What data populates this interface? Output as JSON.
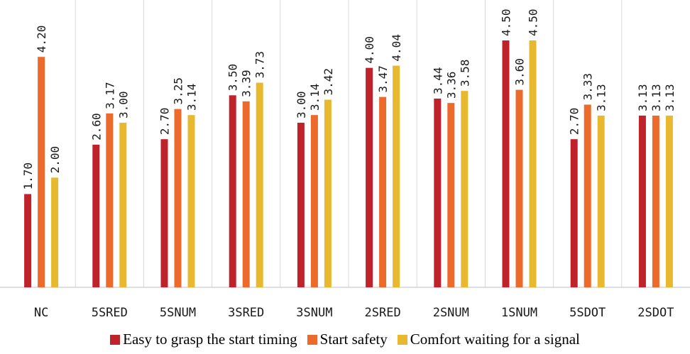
{
  "chart_data": {
    "type": "bar",
    "title": "",
    "xlabel": "",
    "ylabel": "",
    "ylim": [
      0,
      4.5
    ],
    "grid": false,
    "legend_position": "bottom",
    "categories": [
      "NC",
      "5SRED",
      "5SNUM",
      "3SRED",
      "3SNUM",
      "2SRED",
      "2SNUM",
      "1SNUM",
      "5SDOT",
      "2SDOT"
    ],
    "series": [
      {
        "name": "Easy to grasp the start timing",
        "color": "#c0222b",
        "values": [
          1.7,
          2.6,
          2.7,
          3.5,
          3.0,
          4.0,
          3.44,
          4.5,
          2.7,
          3.13
        ],
        "labels": [
          "1.70",
          "2.60",
          "2.70",
          "3.50",
          "3.00",
          "4.00",
          "3.44",
          "4.50",
          "2.70",
          "3.13"
        ]
      },
      {
        "name": "Start safety",
        "color": "#ec6a2b",
        "values": [
          4.2,
          3.17,
          3.25,
          3.39,
          3.14,
          3.47,
          3.36,
          3.6,
          3.33,
          3.13
        ],
        "labels": [
          "4.20",
          "3.17",
          "3.25",
          "3.39",
          "3.14",
          "3.47",
          "3.36",
          "3.60",
          "3.33",
          "3.13"
        ]
      },
      {
        "name": "Comfort waiting for a signal",
        "color": "#e8b92f",
        "values": [
          2.0,
          3.0,
          3.14,
          3.73,
          3.42,
          4.04,
          3.58,
          4.5,
          3.13,
          3.13
        ],
        "labels": [
          "2.00",
          "3.00",
          "3.14",
          "3.73",
          "3.42",
          "4.04",
          "3.58",
          "4.50",
          "3.13",
          "3.13"
        ]
      }
    ]
  }
}
